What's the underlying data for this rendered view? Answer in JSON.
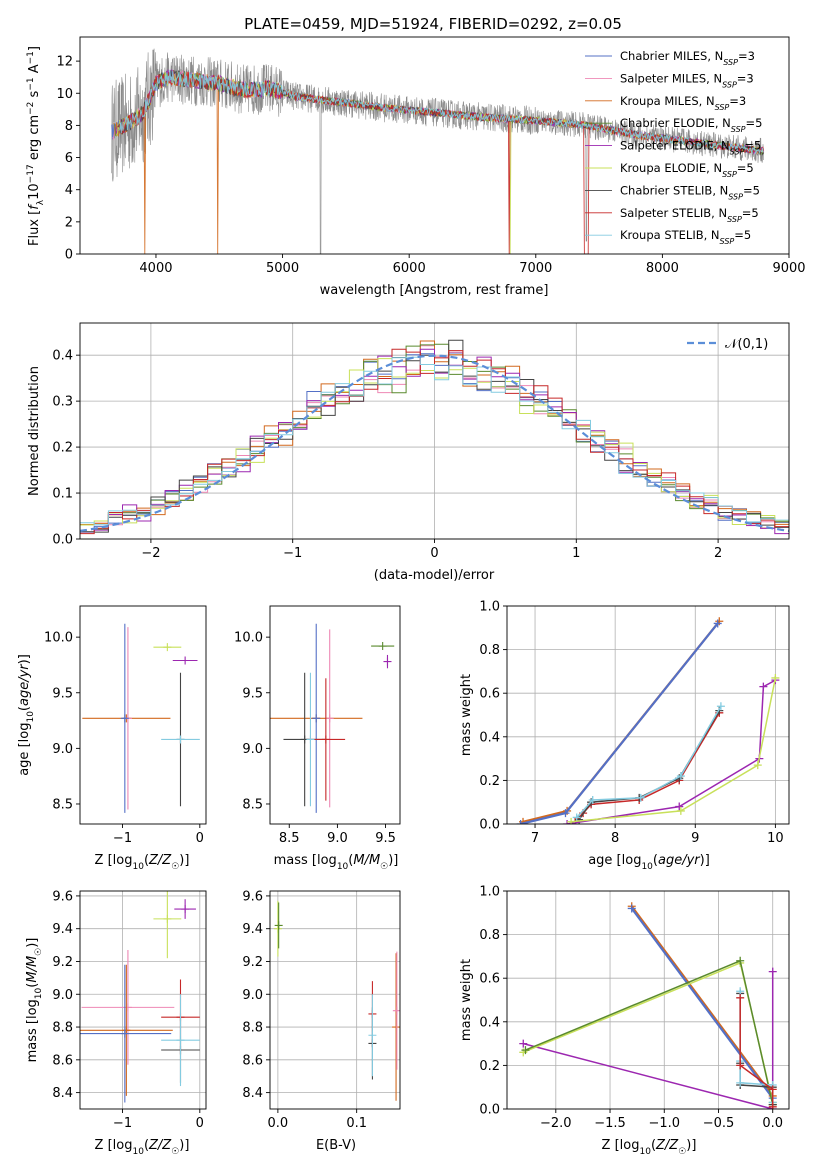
{
  "figure": {
    "title": "PLATE=0459, MJD=51924, FIBERID=0292, z=0.05"
  },
  "palette": {
    "Chabrier MILES": "#5470c6",
    "Salpeter MILES": "#ee88b4",
    "Kroupa MILES": "#d2691e",
    "Chabrier ELODIE": "#5a8a2e",
    "Salpeter ELODIE": "#9c27b0",
    "Kroupa ELODIE": "#c8e05a",
    "Chabrier STELIB": "#444444",
    "Salpeter STELIB": "#c62828",
    "Kroupa STELIB": "#84cbe0",
    "data": "#8a8a8a",
    "normal": "#5b8ed8"
  },
  "chart_data": [
    {
      "id": "spectrum",
      "type": "line",
      "title": "PLATE=0459, MJD=51924, FIBERID=0292, z=0.05",
      "xlabel": "wavelength [Angstrom, rest frame]",
      "ylabel": "Flux [f_λ 10^-17 erg cm^-2 s^-1 A^-1]",
      "xlim": [
        3400,
        9000
      ],
      "ylim": [
        0,
        13.5
      ],
      "xticks": [
        4000,
        5000,
        6000,
        7000,
        8000,
        9000
      ],
      "yticks": [
        0,
        2,
        4,
        6,
        8,
        10,
        12
      ],
      "grid": false,
      "legend_position": "top-right",
      "legend": [
        {
          "name": "Chabrier MILES",
          "nssp": "3"
        },
        {
          "name": "Salpeter MILES",
          "nssp": "3"
        },
        {
          "name": "Kroupa MILES",
          "nssp": "3"
        },
        {
          "name": "Chabrier ELODIE",
          "nssp": "5"
        },
        {
          "name": "Salpeter ELODIE",
          "nssp": "5"
        },
        {
          "name": "Kroupa ELODIE",
          "nssp": "5"
        },
        {
          "name": "Chabrier STELIB",
          "nssp": "5"
        },
        {
          "name": "Salpeter STELIB",
          "nssp": "5"
        },
        {
          "name": "Kroupa STELIB",
          "nssp": "5"
        }
      ],
      "model_continuum": {
        "x": [
          3650,
          3800,
          3900,
          4000,
          4100,
          4300,
          4500,
          4700,
          4900,
          5100,
          5400,
          5800,
          6200,
          6600,
          7000,
          7400,
          7800,
          8200,
          8600,
          8800
        ],
        "y": [
          7.6,
          8.2,
          8.8,
          10.6,
          11.0,
          10.8,
          10.6,
          10.2,
          10.3,
          9.8,
          9.5,
          9.1,
          8.8,
          8.5,
          8.3,
          8.0,
          7.4,
          7.0,
          6.6,
          6.4
        ]
      },
      "data_range": [
        3650,
        8800
      ]
    },
    {
      "id": "residuals",
      "type": "bar",
      "style": "step-histogram",
      "xlabel": "(data-model)/error",
      "ylabel": "Normed distribution",
      "xlim": [
        -2.5,
        2.5
      ],
      "ylim": [
        0,
        0.47
      ],
      "xticks": [
        -2,
        -1,
        0,
        1,
        2
      ],
      "yticks": [
        0.0,
        0.1,
        0.2,
        0.3,
        0.4
      ],
      "grid": true,
      "legend_position": "top-right",
      "legend": [
        "𝒩(0,1)"
      ],
      "bin_width": 0.1,
      "normal_curve": {
        "mu": 0,
        "sigma": 1
      }
    },
    {
      "id": "age-vs-Z",
      "type": "scatter",
      "xlabel": "Z [log10(Z/Z☉)]",
      "ylabel": "age [log10(age/yr)]",
      "xlim": [
        -1.55,
        0.08
      ],
      "ylim": [
        8.32,
        10.28
      ],
      "xticks": [
        -1,
        0
      ],
      "yticks": [
        8.5,
        9.0,
        9.5,
        10.0
      ],
      "grid": false,
      "points": [
        {
          "series": "Kroupa MILES",
          "x": -0.95,
          "xerr": 0.57,
          "y": 9.27,
          "yerr": 0.0
        },
        {
          "series": "Salpeter MILES",
          "x": -0.93,
          "xerr": 0.02,
          "y": 9.27,
          "yerr": 0.82
        },
        {
          "series": "Chabrier MILES",
          "x": -0.97,
          "xerr": 0.02,
          "y": 9.27,
          "yerr": 0.85
        },
        {
          "series": "Kroupa ELODIE",
          "x": -0.42,
          "xerr": 0.18,
          "y": 9.91,
          "yerr": 0.0
        },
        {
          "series": "Salpeter ELODIE",
          "x": -0.19,
          "xerr": 0.16,
          "y": 9.79,
          "yerr": 0.0
        },
        {
          "series": "Chabrier STELIB",
          "x": -0.25,
          "xerr": 0.0,
          "y": 9.08,
          "yerr": 0.6
        },
        {
          "series": "Kroupa STELIB",
          "x": -0.25,
          "xerr": 0.25,
          "y": 9.08,
          "yerr": 0.0
        }
      ]
    },
    {
      "id": "age-vs-mass",
      "type": "scatter",
      "xlabel": "mass [log10(M/M☉)]",
      "ylabel": "",
      "xlim": [
        8.3,
        9.65
      ],
      "ylim": [
        8.32,
        10.28
      ],
      "xticks": [
        8.5,
        9.0,
        9.5
      ],
      "yticks": [
        8.5,
        9.0,
        9.5,
        10.0
      ],
      "grid": false,
      "points": [
        {
          "series": "Chabrier ELODIE",
          "x": 9.47,
          "xerr": 0.12,
          "y": 9.92,
          "yerr": 0.0
        },
        {
          "series": "Salpeter ELODIE",
          "x": 9.52,
          "xerr": 0.0,
          "y": 9.78,
          "yerr": 0.06
        },
        {
          "series": "Kroupa MILES",
          "x": 8.78,
          "xerr": 0.48,
          "y": 9.27,
          "yerr": 0.0
        },
        {
          "series": "Chabrier MILES",
          "x": 8.78,
          "xerr": 0.0,
          "y": 9.27,
          "yerr": 0.85
        },
        {
          "series": "Salpeter MILES",
          "x": 8.92,
          "xerr": 0.0,
          "y": 9.27,
          "yerr": 0.8
        },
        {
          "series": "Chabrier STELIB",
          "x": 8.66,
          "xerr": 0.22,
          "y": 9.08,
          "yerr": 0.6
        },
        {
          "series": "Salpeter STELIB",
          "x": 8.88,
          "xerr": 0.2,
          "y": 9.08,
          "yerr": 0.55
        },
        {
          "series": "Kroupa STELIB",
          "x": 8.72,
          "xerr": 0.0,
          "y": 9.08,
          "yerr": 0.6
        }
      ]
    },
    {
      "id": "mass-weight-vs-age",
      "type": "line",
      "xlabel": "age [log10(age/yr)]",
      "ylabel": "mass weight",
      "xlim": [
        6.65,
        10.17
      ],
      "ylim": [
        0,
        1.0
      ],
      "xticks": [
        7,
        8,
        9,
        10
      ],
      "yticks": [
        0.0,
        0.2,
        0.4,
        0.6,
        0.8,
        1.0
      ],
      "grid": true,
      "series": [
        {
          "name": "Kroupa MILES",
          "x": [
            6.85,
            7.4,
            9.3
          ],
          "y": [
            0.01,
            0.06,
            0.93
          ]
        },
        {
          "name": "Chabrier MILES",
          "x": [
            6.82,
            7.38,
            9.28
          ],
          "y": [
            0.0,
            0.05,
            0.92
          ]
        },
        {
          "name": "Salpeter STELIB",
          "x": [
            7.5,
            7.6,
            7.7,
            8.3,
            8.8,
            9.3
          ],
          "y": [
            0.01,
            0.05,
            0.09,
            0.11,
            0.2,
            0.51
          ]
        },
        {
          "name": "Chabrier STELIB",
          "x": [
            7.55,
            7.7,
            8.3,
            8.8,
            9.3
          ],
          "y": [
            0.02,
            0.1,
            0.12,
            0.21,
            0.52
          ]
        },
        {
          "name": "Kroupa STELIB",
          "x": [
            7.52,
            7.72,
            8.32,
            8.82,
            9.32
          ],
          "y": [
            0.03,
            0.11,
            0.12,
            0.22,
            0.54
          ]
        },
        {
          "name": "Salpeter ELODIE",
          "x": [
            7.4,
            8.8,
            9.8,
            9.85,
            10.0
          ],
          "y": [
            0.0,
            0.08,
            0.3,
            0.63,
            0.66
          ]
        },
        {
          "name": "Kroupa ELODIE",
          "x": [
            7.45,
            8.82,
            9.78,
            10.0
          ],
          "y": [
            0.01,
            0.06,
            0.27,
            0.67
          ]
        }
      ]
    },
    {
      "id": "mass-vs-Z",
      "type": "scatter",
      "xlabel": "Z [log10(Z/Z☉)]",
      "ylabel": "mass [log10(M/M☉)]",
      "xlim": [
        -1.55,
        0.08
      ],
      "ylim": [
        8.3,
        9.63
      ],
      "xticks": [
        -1,
        0
      ],
      "yticks": [
        8.4,
        8.6,
        8.8,
        9.0,
        9.2,
        9.4,
        9.6
      ],
      "grid": true,
      "points": [
        {
          "series": "Salpeter MILES",
          "x": -0.93,
          "xerr": 0.6,
          "y": 8.92,
          "yerr": 0.35
        },
        {
          "series": "Kroupa MILES",
          "x": -0.95,
          "xerr": 0.6,
          "y": 8.78,
          "yerr": 0.4
        },
        {
          "series": "Chabrier MILES",
          "x": -0.97,
          "xerr": 0.6,
          "y": 8.76,
          "yerr": 0.42
        },
        {
          "series": "Kroupa ELODIE",
          "x": -0.42,
          "xerr": 0.18,
          "y": 9.46,
          "yerr": 0.24
        },
        {
          "series": "Salpeter ELODIE",
          "x": -0.19,
          "xerr": 0.14,
          "y": 9.52,
          "yerr": 0.06
        },
        {
          "series": "Salpeter STELIB",
          "x": -0.25,
          "xerr": 0.25,
          "y": 8.86,
          "yerr": 0.23
        },
        {
          "series": "Chabrier STELIB",
          "x": -0.25,
          "xerr": 0.25,
          "y": 8.66,
          "yerr": 0.2
        },
        {
          "series": "Kroupa STELIB",
          "x": -0.25,
          "xerr": 0.25,
          "y": 8.72,
          "yerr": 0.28
        }
      ]
    },
    {
      "id": "mass-vs-EBV",
      "type": "scatter",
      "xlabel": "E(B-V)",
      "ylabel": "",
      "xlim": [
        -0.01,
        0.155
      ],
      "ylim": [
        8.3,
        9.63
      ],
      "xticks": [
        0.0,
        0.1
      ],
      "yticks": [
        8.4,
        8.6,
        8.8,
        9.0,
        9.2,
        9.4,
        9.6
      ],
      "grid": true,
      "points": [
        {
          "series": "Kroupa ELODIE",
          "x": 0.0,
          "xerr": 0.0,
          "y": 9.4,
          "yerr": 0.17
        },
        {
          "series": "Chabrier ELODIE",
          "x": 0.001,
          "xerr": 0.0,
          "y": 9.42,
          "yerr": 0.14
        },
        {
          "series": "Salpeter STELIB",
          "x": 0.12,
          "xerr": 0.0,
          "y": 8.88,
          "yerr": 0.2
        },
        {
          "series": "Chabrier STELIB",
          "x": 0.12,
          "xerr": 0.0,
          "y": 8.7,
          "yerr": 0.22
        },
        {
          "series": "Kroupa STELIB",
          "x": 0.12,
          "xerr": 0.0,
          "y": 8.75,
          "yerr": 0.25
        },
        {
          "series": "Kroupa MILES",
          "x": 0.15,
          "xerr": 0.0,
          "y": 8.8,
          "yerr": 0.45
        },
        {
          "series": "Salpeter MILES",
          "x": 0.151,
          "xerr": 0.0,
          "y": 8.9,
          "yerr": 0.36
        }
      ]
    },
    {
      "id": "mass-weight-vs-Z",
      "type": "line",
      "xlabel": "Z [log10(Z/Z☉)]",
      "ylabel": "mass weight",
      "xlim": [
        -2.45,
        0.15
      ],
      "ylim": [
        0,
        1.0
      ],
      "xticks": [
        -2.0,
        -1.5,
        -1.0,
        -0.5,
        0.0
      ],
      "yticks": [
        0.0,
        0.2,
        0.4,
        0.6,
        0.8,
        1.0
      ],
      "grid": true,
      "series": [
        {
          "name": "Kroupa MILES",
          "x": [
            -1.3,
            0.0
          ],
          "y": [
            0.93,
            0.06
          ]
        },
        {
          "name": "Chabrier MILES",
          "x": [
            -1.3,
            0.0
          ],
          "y": [
            0.92,
            0.05
          ]
        },
        {
          "name": "Salpeter ELODIE",
          "x": [
            -2.3,
            0.0,
            0.0
          ],
          "y": [
            0.3,
            0.0,
            0.63
          ]
        },
        {
          "name": "Kroupa ELODIE",
          "x": [
            -2.3,
            -0.3,
            0.0
          ],
          "y": [
            0.26,
            0.67,
            0.03
          ]
        },
        {
          "name": "Chabrier ELODIE",
          "x": [
            -2.28,
            -0.3,
            0.0
          ],
          "y": [
            0.27,
            0.68,
            0.02
          ]
        },
        {
          "name": "Chabrier STELIB",
          "x": [
            -0.3,
            -0.3,
            -0.3,
            0.0,
            0.0
          ],
          "y": [
            0.53,
            0.21,
            0.11,
            0.1,
            0.02
          ]
        },
        {
          "name": "Kroupa STELIB",
          "x": [
            -0.3,
            -0.3,
            -0.3,
            0.0,
            0.0
          ],
          "y": [
            0.54,
            0.22,
            0.12,
            0.11,
            0.03
          ]
        },
        {
          "name": "Salpeter STELIB",
          "x": [
            -0.3,
            -0.3,
            0.0,
            0.0
          ],
          "y": [
            0.51,
            0.2,
            0.09,
            0.01
          ]
        }
      ]
    }
  ]
}
